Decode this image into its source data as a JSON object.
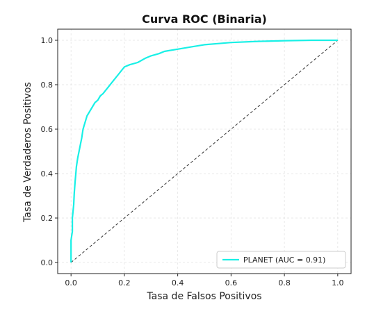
{
  "chart_data": {
    "type": "line",
    "title": "Curva ROC (Binaria)",
    "xlabel": "Tasa de Falsos Positivos",
    "ylabel": "Tasa de Verdaderos Positivos",
    "xlim": [
      -0.05,
      1.05
    ],
    "ylim": [
      -0.05,
      1.05
    ],
    "x_ticks": [
      "0.0",
      "0.2",
      "0.4",
      "0.6",
      "0.8",
      "1.0"
    ],
    "y_ticks": [
      "0.0",
      "0.2",
      "0.4",
      "0.6",
      "0.8",
      "1.0"
    ],
    "grid": true,
    "legend_position": "lower-right",
    "series": [
      {
        "name": "PLANET (AUC = 0.91)",
        "color": "#19f0e6",
        "style": "solid",
        "x": [
          0.0,
          0.0,
          0.005,
          0.005,
          0.01,
          0.012,
          0.015,
          0.018,
          0.02,
          0.025,
          0.03,
          0.035,
          0.04,
          0.045,
          0.05,
          0.055,
          0.06,
          0.07,
          0.08,
          0.09,
          0.1,
          0.11,
          0.12,
          0.14,
          0.16,
          0.18,
          0.2,
          0.22,
          0.25,
          0.28,
          0.3,
          0.33,
          0.35,
          0.4,
          0.45,
          0.5,
          0.55,
          0.6,
          0.7,
          0.8,
          0.9,
          1.0
        ],
        "y": [
          0.0,
          0.1,
          0.14,
          0.2,
          0.26,
          0.31,
          0.36,
          0.4,
          0.43,
          0.47,
          0.5,
          0.53,
          0.56,
          0.6,
          0.62,
          0.64,
          0.66,
          0.68,
          0.7,
          0.72,
          0.73,
          0.75,
          0.76,
          0.79,
          0.82,
          0.85,
          0.88,
          0.89,
          0.9,
          0.92,
          0.93,
          0.94,
          0.95,
          0.96,
          0.97,
          0.98,
          0.985,
          0.99,
          0.995,
          0.998,
          1.0,
          1.0
        ]
      },
      {
        "name": "",
        "color": "#333333",
        "style": "dashed",
        "x": [
          0.0,
          1.0
        ],
        "y": [
          0.0,
          1.0
        ]
      }
    ]
  }
}
